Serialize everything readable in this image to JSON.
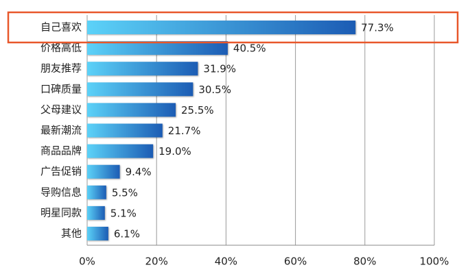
{
  "chart_data": {
    "type": "bar",
    "orientation": "horizontal",
    "categories": [
      "自己喜欢",
      "价格高低",
      "朋友推荐",
      "口碑质量",
      "父母建议",
      "最新潮流",
      "商品品牌",
      "广告促销",
      "导购信息",
      "明星同款",
      "其他"
    ],
    "values": [
      77.3,
      40.5,
      31.9,
      30.5,
      25.5,
      21.7,
      19.0,
      9.4,
      5.5,
      5.1,
      6.1
    ],
    "value_labels": [
      "77.3%",
      "40.5%",
      "31.9%",
      "30.5%",
      "25.5%",
      "21.7%",
      "19.0%",
      "9.4%",
      "5.5%",
      "5.1%",
      "6.1%"
    ],
    "color": [
      "#5cd2f8",
      "#1c5cb4"
    ],
    "xlim": [
      0,
      100
    ],
    "xticks": [
      {
        "value": 0,
        "label": "0%"
      },
      {
        "value": 20,
        "label": "20%"
      },
      {
        "value": 40,
        "label": "40%"
      },
      {
        "value": 60,
        "label": "60%"
      },
      {
        "value": 80,
        "label": "80%"
      },
      {
        "value": 100,
        "label": "100%"
      }
    ],
    "grid": true,
    "highlight_color": "#e8572a"
  }
}
